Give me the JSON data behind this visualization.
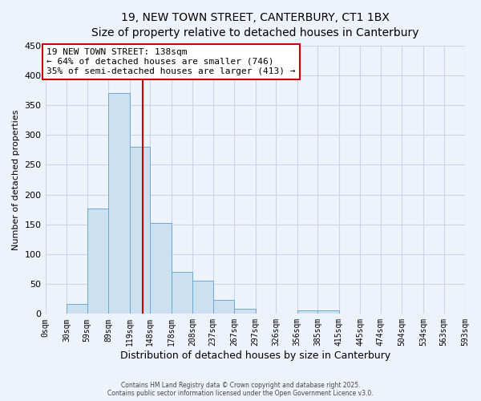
{
  "title": "19, NEW TOWN STREET, CANTERBURY, CT1 1BX",
  "subtitle": "Size of property relative to detached houses in Canterbury",
  "xlabel": "Distribution of detached houses by size in Canterbury",
  "ylabel": "Number of detached properties",
  "bar_color": "#cce0f0",
  "bar_edge_color": "#6aaad4",
  "background_color": "#eef2fa",
  "grid_color": "#c8d4e8",
  "bins": [
    0,
    30,
    59,
    89,
    119,
    148,
    178,
    208,
    237,
    267,
    297,
    326,
    356,
    385,
    415,
    445,
    474,
    504,
    534,
    563,
    593
  ],
  "bin_labels": [
    "0sqm",
    "30sqm",
    "59sqm",
    "89sqm",
    "119sqm",
    "148sqm",
    "178sqm",
    "208sqm",
    "237sqm",
    "267sqm",
    "297sqm",
    "326sqm",
    "356sqm",
    "385sqm",
    "415sqm",
    "445sqm",
    "474sqm",
    "504sqm",
    "534sqm",
    "563sqm",
    "593sqm"
  ],
  "counts": [
    0,
    17,
    176,
    370,
    280,
    152,
    70,
    55,
    23,
    9,
    0,
    0,
    6,
    6,
    0,
    0,
    0,
    0,
    0,
    0
  ],
  "ylim": [
    0,
    450
  ],
  "yticks": [
    0,
    50,
    100,
    150,
    200,
    250,
    300,
    350,
    400,
    450
  ],
  "property_line_x": 138,
  "property_line_label": "19 NEW TOWN STREET: 138sqm",
  "annotation_line1": "← 64% of detached houses are smaller (746)",
  "annotation_line2": "35% of semi-detached houses are larger (413) →",
  "annotation_box_color": "#ffffff",
  "annotation_box_edge_color": "#cc0000",
  "vline_color": "#cc0000",
  "footer1": "Contains HM Land Registry data © Crown copyright and database right 2025.",
  "footer2": "Contains public sector information licensed under the Open Government Licence v3.0."
}
